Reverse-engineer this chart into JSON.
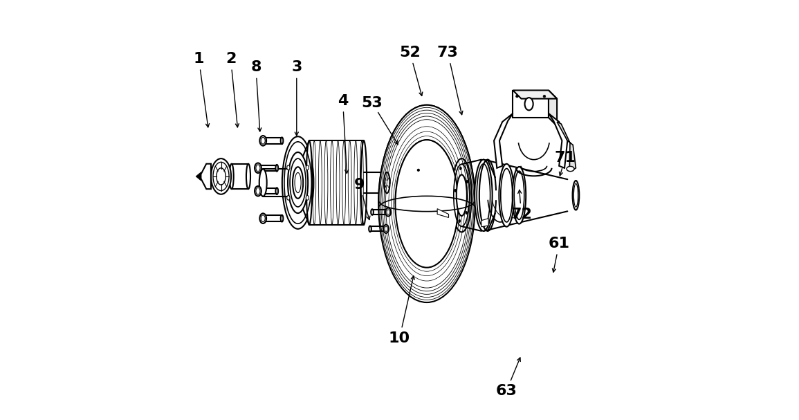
{
  "bg_color": "#ffffff",
  "lc": "#000000",
  "lw": 1.5,
  "figsize": [
    11.55,
    6.07
  ],
  "dpi": 100,
  "labels_info": {
    "1": [
      0.022,
      0.86,
      0.045,
      0.69
    ],
    "2": [
      0.098,
      0.86,
      0.115,
      0.69
    ],
    "8": [
      0.158,
      0.84,
      0.168,
      0.68
    ],
    "3": [
      0.255,
      0.84,
      0.255,
      0.67
    ],
    "4": [
      0.365,
      0.76,
      0.375,
      0.58
    ],
    "9": [
      0.405,
      0.56,
      0.43,
      0.47
    ],
    "10": [
      0.5,
      0.195,
      0.535,
      0.35
    ],
    "53": [
      0.435,
      0.755,
      0.5,
      0.65
    ],
    "52": [
      0.525,
      0.875,
      0.555,
      0.765
    ],
    "61": [
      0.88,
      0.42,
      0.865,
      0.345
    ],
    "63": [
      0.755,
      0.07,
      0.79,
      0.155
    ],
    "72": [
      0.79,
      0.49,
      0.785,
      0.555
    ],
    "71": [
      0.895,
      0.625,
      0.88,
      0.575
    ],
    "73": [
      0.615,
      0.875,
      0.65,
      0.72
    ]
  },
  "label_fs": 16
}
